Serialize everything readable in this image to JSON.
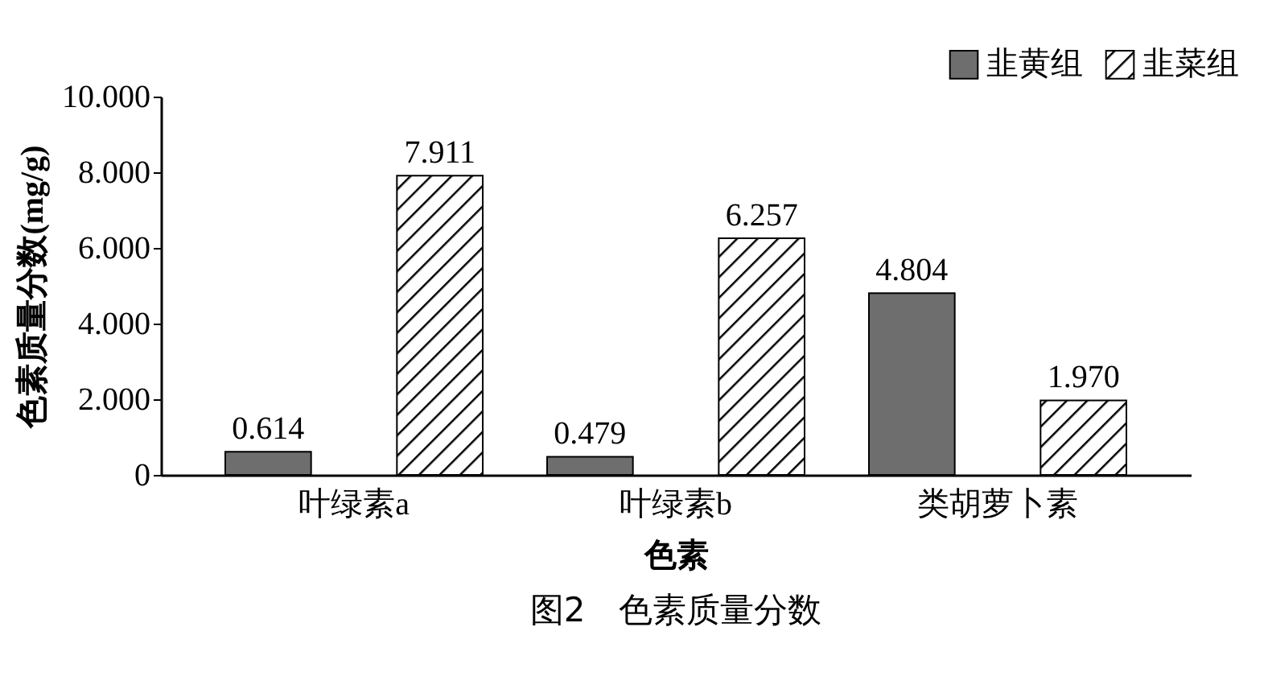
{
  "chart_data": {
    "type": "bar",
    "title": "图2　色素质量分数",
    "xlabel": "色素",
    "ylabel": "色素质量分数(mg/g)",
    "categories": [
      "叶绿素a",
      "叶绿素b",
      "类胡萝卜素"
    ],
    "series": [
      {
        "name": "韭黄组",
        "color": "#6e6e6e",
        "values": [
          0.614,
          0.479,
          4.804
        ],
        "value_labels": [
          "0.614",
          "0.479",
          "4.804"
        ]
      },
      {
        "name": "韭菜组",
        "color": "#000000",
        "values": [
          7.911,
          6.257,
          1.97
        ],
        "value_labels": [
          "7.911",
          "6.257",
          "1.970"
        ]
      }
    ],
    "ylim": [
      0,
      10
    ],
    "yticks": [
      {
        "value": 0,
        "label": "0"
      },
      {
        "value": 2,
        "label": "2.000"
      },
      {
        "value": 4,
        "label": "4.000"
      },
      {
        "value": 6,
        "label": "6.000"
      },
      {
        "value": 8,
        "label": "8.000"
      },
      {
        "value": 10,
        "label": "10.000"
      }
    ],
    "grid": false,
    "legend": "top right"
  }
}
